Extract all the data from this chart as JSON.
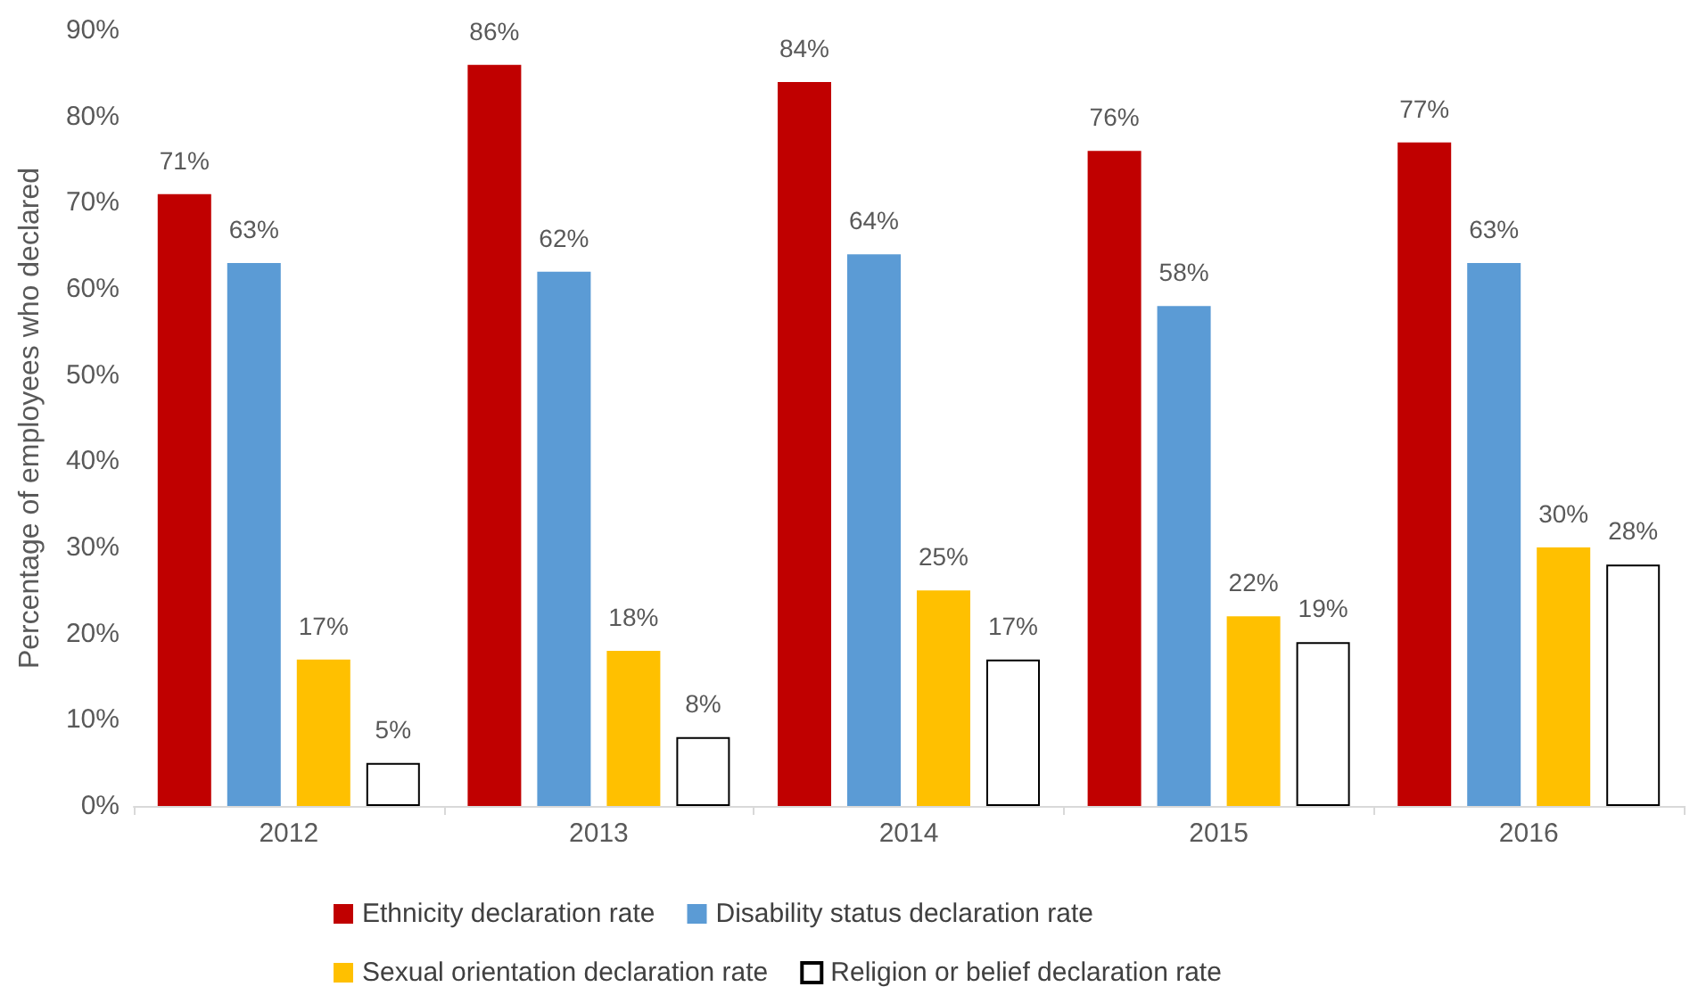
{
  "chart_data": {
    "type": "bar",
    "ylabel": "Percentage of employees who declared",
    "categories": [
      "2012",
      "2013",
      "2014",
      "2015",
      "2016"
    ],
    "series": [
      {
        "name": "Ethnicity declaration rate",
        "color": "#c00000",
        "values": [
          71,
          86,
          84,
          76,
          77
        ],
        "value_labels": [
          "71%",
          "86%",
          "84%",
          "76%",
          "77%"
        ]
      },
      {
        "name": "Disability status declaration rate",
        "color": "#5b9bd5",
        "values": [
          63,
          62,
          64,
          58,
          63
        ],
        "value_labels": [
          "63%",
          "62%",
          "64%",
          "58%",
          "63%"
        ]
      },
      {
        "name": "Sexual orientation declaration rate",
        "color": "#ffc000",
        "values": [
          17,
          18,
          25,
          22,
          30
        ],
        "value_labels": [
          "17%",
          "18%",
          "25%",
          "22%",
          "30%"
        ]
      },
      {
        "name": "Religion or belief declaration rate",
        "color": "#ffffff",
        "values": [
          5,
          8,
          17,
          19,
          28
        ],
        "value_labels": [
          "5%",
          "8%",
          "17%",
          "19%",
          "28%"
        ]
      }
    ],
    "ylim": [
      0,
      90
    ],
    "yticks": [
      {
        "value": 0,
        "label": "0%"
      },
      {
        "value": 10,
        "label": "10%"
      },
      {
        "value": 20,
        "label": "20%"
      },
      {
        "value": 30,
        "label": "30%"
      },
      {
        "value": 40,
        "label": "40%"
      },
      {
        "value": 50,
        "label": "50%"
      },
      {
        "value": 60,
        "label": "60%"
      },
      {
        "value": 70,
        "label": "70%"
      },
      {
        "value": 80,
        "label": "80%"
      },
      {
        "value": 90,
        "label": "90%"
      }
    ],
    "grid": false,
    "legend": "bottom"
  }
}
